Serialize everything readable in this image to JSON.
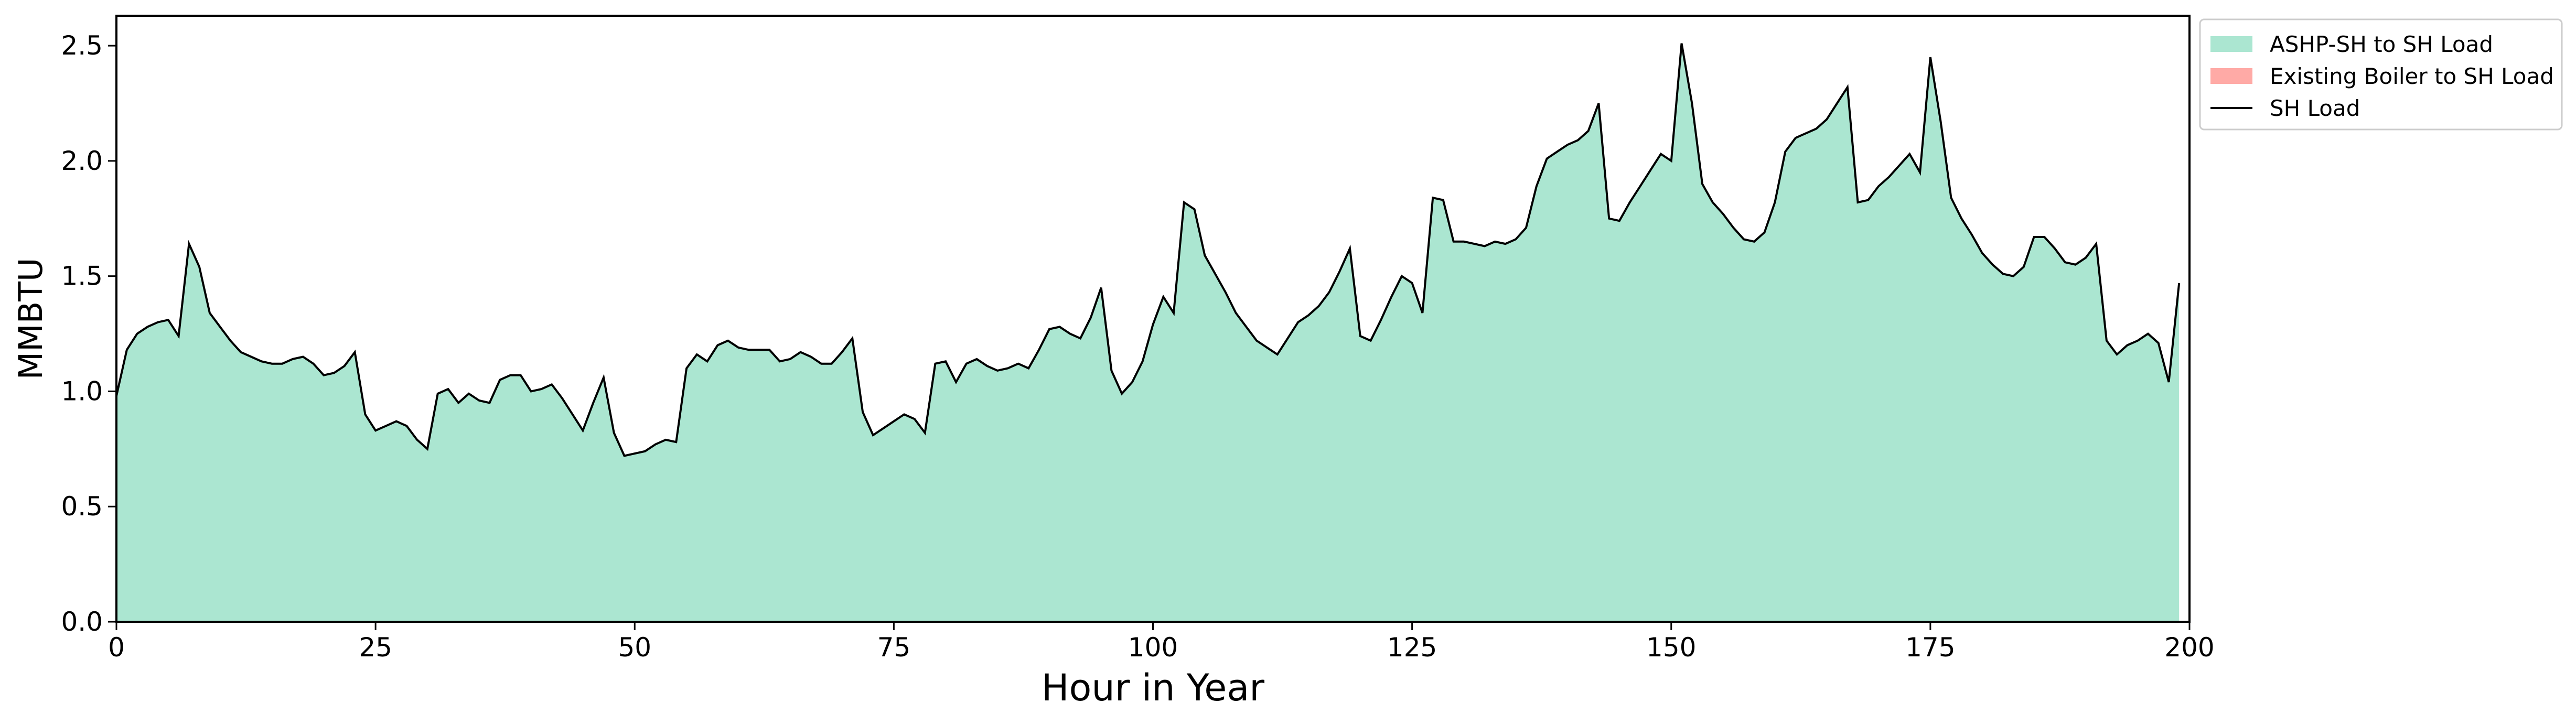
{
  "chart_data": {
    "type": "area",
    "xlabel": "Hour in Year",
    "ylabel": "MMBTU",
    "xlim": [
      0,
      200
    ],
    "ylim": [
      0,
      2.63
    ],
    "xticks": [
      0,
      25,
      50,
      75,
      100,
      125,
      150,
      175,
      200
    ],
    "yticks": [
      0.0,
      0.5,
      1.0,
      1.5,
      2.0,
      2.5
    ],
    "xtick_labels": [
      "0",
      "25",
      "50",
      "75",
      "100",
      "125",
      "150",
      "175",
      "200"
    ],
    "ytick_labels": [
      "0.0",
      "0.5",
      "1.0",
      "1.5",
      "2.0",
      "2.5"
    ],
    "grid": false,
    "legend_position": "outside-top-right",
    "series": [
      {
        "name": "ASHP-SH to SH Load",
        "kind": "stacked-area",
        "color": "#abe6d1"
      },
      {
        "name": "Existing Boiler to SH Load",
        "kind": "stacked-area",
        "color": "#ffaaa6",
        "values": "all zero"
      },
      {
        "name": "SH Load",
        "kind": "line",
        "color": "#000000"
      }
    ],
    "x": [
      0,
      1,
      2,
      3,
      4,
      5,
      6,
      7,
      8,
      9,
      10,
      11,
      12,
      13,
      14,
      15,
      16,
      17,
      18,
      19,
      20,
      21,
      22,
      23,
      24,
      25,
      26,
      27,
      28,
      29,
      30,
      31,
      32,
      33,
      34,
      35,
      36,
      37,
      38,
      39,
      40,
      41,
      42,
      43,
      44,
      45,
      46,
      47,
      48,
      49,
      50,
      51,
      52,
      53,
      54,
      55,
      56,
      57,
      58,
      59,
      60,
      61,
      62,
      63,
      64,
      65,
      66,
      67,
      68,
      69,
      70,
      71,
      72,
      73,
      74,
      75,
      76,
      77,
      78,
      79,
      80,
      81,
      82,
      83,
      84,
      85,
      86,
      87,
      88,
      89,
      90,
      91,
      92,
      93,
      94,
      95,
      96,
      97,
      98,
      99,
      100,
      101,
      102,
      103,
      104,
      105,
      106,
      107,
      108,
      109,
      110,
      111,
      112,
      113,
      114,
      115,
      116,
      117,
      118,
      119,
      120,
      121,
      122,
      123,
      124,
      125,
      126,
      127,
      128,
      129,
      130,
      131,
      132,
      133,
      134,
      135,
      136,
      137,
      138,
      139,
      140,
      141,
      142,
      143,
      144,
      145,
      146,
      147,
      148,
      149,
      150,
      151,
      152,
      153,
      154,
      155,
      156,
      157,
      158,
      159,
      160,
      161,
      162,
      163,
      164,
      165,
      166,
      167,
      168,
      169,
      170,
      171,
      172,
      173,
      174,
      175,
      176,
      177,
      178,
      179,
      180,
      181,
      182,
      183,
      184,
      185,
      186,
      187,
      188,
      189,
      190,
      191,
      192,
      193,
      194,
      195,
      196,
      197,
      198,
      199
    ],
    "values": [
      0.98,
      1.18,
      1.25,
      1.28,
      1.3,
      1.31,
      1.24,
      1.64,
      1.54,
      1.34,
      1.28,
      1.22,
      1.17,
      1.15,
      1.13,
      1.12,
      1.12,
      1.14,
      1.15,
      1.12,
      1.07,
      1.08,
      1.11,
      1.17,
      0.9,
      0.83,
      0.85,
      0.87,
      0.85,
      0.79,
      0.75,
      0.99,
      1.01,
      0.95,
      0.99,
      0.96,
      0.95,
      1.05,
      1.07,
      1.07,
      1.0,
      1.01,
      1.03,
      0.97,
      0.9,
      0.83,
      0.95,
      1.06,
      0.82,
      0.72,
      0.73,
      0.74,
      0.77,
      0.79,
      0.78,
      1.1,
      1.16,
      1.13,
      1.2,
      1.22,
      1.19,
      1.18,
      1.18,
      1.18,
      1.13,
      1.14,
      1.17,
      1.15,
      1.12,
      1.12,
      1.17,
      1.23,
      0.91,
      0.81,
      0.84,
      0.87,
      0.9,
      0.88,
      0.82,
      1.12,
      1.13,
      1.04,
      1.12,
      1.14,
      1.11,
      1.09,
      1.1,
      1.12,
      1.1,
      1.18,
      1.27,
      1.28,
      1.25,
      1.23,
      1.32,
      1.45,
      1.09,
      0.99,
      1.04,
      1.13,
      1.29,
      1.41,
      1.34,
      1.82,
      1.79,
      1.59,
      1.51,
      1.43,
      1.34,
      1.28,
      1.22,
      1.19,
      1.16,
      1.23,
      1.3,
      1.33,
      1.37,
      1.43,
      1.52,
      1.62,
      1.24,
      1.22,
      1.31,
      1.41,
      1.5,
      1.47,
      1.34,
      1.84,
      1.83,
      1.65,
      1.65,
      1.64,
      1.63,
      1.65,
      1.64,
      1.66,
      1.71,
      1.89,
      2.01,
      2.04,
      2.07,
      2.09,
      2.13,
      2.25,
      1.75,
      1.74,
      1.82,
      1.89,
      1.96,
      2.03,
      2.0,
      2.51,
      2.25,
      1.9,
      1.82,
      1.77,
      1.71,
      1.66,
      1.65,
      1.69,
      1.82,
      2.04,
      2.1,
      2.12,
      2.14,
      2.18,
      2.25,
      2.32,
      1.82,
      1.83,
      1.89,
      1.93,
      1.98,
      2.03,
      1.95,
      2.45,
      2.17,
      1.84,
      1.75,
      1.68,
      1.6,
      1.55,
      1.51,
      1.5,
      1.54,
      1.67,
      1.67,
      1.62,
      1.56,
      1.55,
      1.58,
      1.64,
      1.22,
      1.16,
      1.2,
      1.22,
      1.25,
      1.21,
      1.04,
      1.47
    ]
  }
}
